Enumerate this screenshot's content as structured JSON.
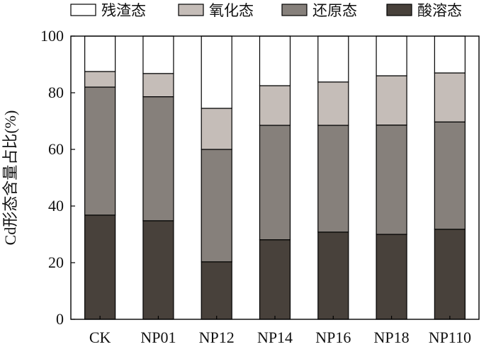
{
  "chart_data": {
    "type": "bar",
    "stacked": true,
    "title": "",
    "xlabel": "",
    "ylabel": "Cd形态含量占比(%)",
    "ylim": [
      0,
      100
    ],
    "yticks": [
      0,
      20,
      40,
      60,
      80,
      100
    ],
    "grid": false,
    "legend_position": "top",
    "categories": [
      "CK",
      "NP01",
      "NP12",
      "NP14",
      "NP16",
      "NP18",
      "NP110"
    ],
    "series": [
      {
        "name": "酸溶态",
        "color": "#48413b",
        "values": [
          36.8,
          34.8,
          20.3,
          28.1,
          30.8,
          30.0,
          31.8
        ]
      },
      {
        "name": "还原态",
        "color": "#86807b",
        "values": [
          45.2,
          43.8,
          39.7,
          40.4,
          37.7,
          38.6,
          37.9
        ]
      },
      {
        "name": "氧化态",
        "color": "#c5bdb8",
        "values": [
          5.5,
          8.2,
          14.5,
          14.0,
          15.3,
          17.4,
          17.3
        ]
      },
      {
        "name": "残渣态",
        "color": "#ffffff",
        "values": [
          12.5,
          13.2,
          25.5,
          17.5,
          16.2,
          14.0,
          13.0
        ]
      }
    ]
  }
}
